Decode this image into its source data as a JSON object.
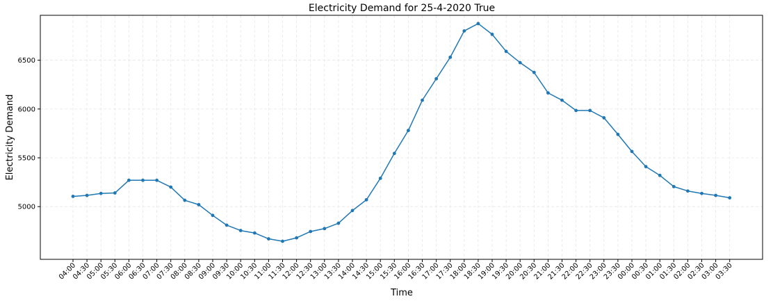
{
  "chart_data": {
    "type": "line",
    "title": "Electricity Demand for 25-4-2020 True",
    "xlabel": "Time",
    "ylabel": "Electricity Demand",
    "ylim": [
      4460,
      6960
    ],
    "yticks": [
      5000,
      5500,
      6000,
      6500
    ],
    "grid": true,
    "line_color": "#1f77b4",
    "categories": [
      "04:00",
      "04:30",
      "05:00",
      "05:30",
      "06:00",
      "06:30",
      "07:00",
      "07:30",
      "08:00",
      "08:30",
      "09:00",
      "09:30",
      "10:00",
      "10:30",
      "11:00",
      "11:30",
      "12:00",
      "12:30",
      "13:00",
      "13:30",
      "14:00",
      "14:30",
      "15:00",
      "15:30",
      "16:00",
      "16:30",
      "17:00",
      "17:30",
      "18:00",
      "18:30",
      "19:00",
      "19:30",
      "20:00",
      "20:30",
      "21:00",
      "21:30",
      "22:00",
      "22:30",
      "23:00",
      "23:30",
      "00:00",
      "00:30",
      "01:00",
      "01:30",
      "02:00",
      "02:30",
      "03:00",
      "03:30"
    ],
    "series": [
      {
        "values": [
          5105,
          5115,
          5135,
          5140,
          5270,
          5270,
          5270,
          5200,
          5065,
          5020,
          4910,
          4810,
          4755,
          4730,
          4670,
          4645,
          4680,
          4745,
          4775,
          4830,
          4960,
          5070,
          5290,
          5545,
          5780,
          6090,
          6310,
          6530,
          6800,
          6875,
          6765,
          6590,
          6475,
          6375,
          6165,
          6090,
          5985,
          5985,
          5910,
          5740,
          5565,
          5410,
          5320,
          5205,
          5160,
          5135,
          5115,
          5090
        ]
      }
    ]
  }
}
